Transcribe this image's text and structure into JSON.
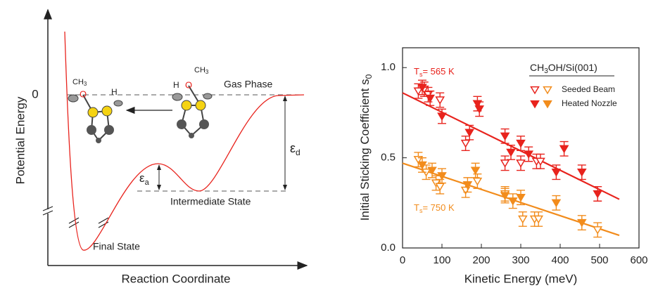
{
  "diagram": {
    "y_label": "Potential Energy",
    "x_label": "Reaction Coordinate",
    "zero_label": "0",
    "gas_phase": "Gas Phase",
    "intermediate_state": "Intermediate State",
    "final_state": "Final State",
    "epsilon_d": {
      "symbol": "ε",
      "sub": "d"
    },
    "epsilon_a": {
      "symbol": "ε",
      "sub": "a"
    },
    "molecule_left": {
      "methyl": {
        "text": "CH",
        "sub": "3"
      },
      "oxygen": "O",
      "hydrogen": "H"
    },
    "molecule_right": {
      "methyl": {
        "text": "CH",
        "sub": "3"
      },
      "oxygen": "O",
      "hydrogen": "H"
    }
  },
  "chart_data": {
    "type": "scatter",
    "x_label": "Kinetic Energy (meV)",
    "y_label": {
      "text": "Initial Sticking Coefficient s",
      "sub": "0"
    },
    "xlim": [
      0,
      600
    ],
    "xticks": [
      0,
      100,
      200,
      300,
      400,
      500,
      600
    ],
    "ylim": [
      0,
      1.11
    ],
    "yticks": [
      {
        "value": 0,
        "label": "0.0"
      },
      {
        "value": 0.5,
        "label": "0.5"
      },
      {
        "value": 1,
        "label": "1.0"
      }
    ],
    "legend": {
      "title": [
        "CH",
        "3",
        "OH/Si(001)"
      ],
      "position": "top-right"
    },
    "markers": [
      {
        "name": "Seeded Beam",
        "filled": false
      },
      {
        "name": "Heated Nozzle",
        "filled": true
      }
    ],
    "groups": [
      {
        "label": {
          "text": "T",
          "sub": "s",
          "rest": "= 565 K"
        },
        "color": "#e8231d",
        "fit": {
          "x": [
            0,
            550
          ],
          "y": [
            0.86,
            0.27
          ]
        },
        "series": [
          {
            "x": [
              40,
              55,
              65,
              95,
              160,
              260,
              300,
              340,
              350
            ],
            "y": [
              0.87,
              0.88,
              0.85,
              0.82,
              0.58,
              0.47,
              0.47,
              0.48,
              0.48
            ],
            "error": 0.04
          },
          {
            "x": [
              50,
              70,
              100,
              170,
              190,
              195,
              260,
              275,
              300,
              320,
              390,
              410,
              455,
              495
            ],
            "y": [
              0.89,
              0.83,
              0.73,
              0.64,
              0.8,
              0.77,
              0.62,
              0.53,
              0.58,
              0.52,
              0.42,
              0.55,
              0.42,
              0.3
            ],
            "error": 0.04
          }
        ]
      },
      {
        "label": {
          "text": "T",
          "sub": "s",
          "rest": "= 750 K"
        },
        "color": "#f28c1c",
        "fit": {
          "x": [
            0,
            550
          ],
          "y": [
            0.47,
            0.07
          ]
        },
        "series": [
          {
            "x": [
              40,
              60,
              85,
              95,
              160,
              190,
              260,
              305,
              335,
              345,
              495
            ],
            "y": [
              0.49,
              0.42,
              0.36,
              0.34,
              0.32,
              0.37,
              0.3,
              0.16,
              0.16,
              0.16,
              0.1
            ],
            "error": 0.04
          },
          {
            "x": [
              50,
              75,
              100,
              165,
              185,
              260,
              280,
              300,
              390,
              455
            ],
            "y": [
              0.46,
              0.43,
              0.4,
              0.35,
              0.43,
              0.29,
              0.26,
              0.28,
              0.25,
              0.14
            ],
            "error": 0.04
          }
        ]
      }
    ]
  }
}
